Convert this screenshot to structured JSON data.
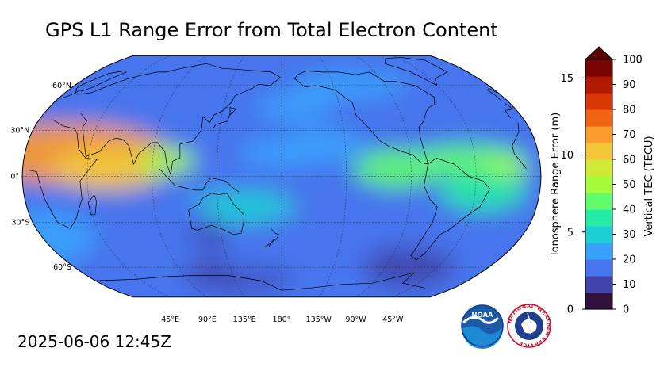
{
  "title": "GPS L1 Range Error from Total Electron Content",
  "timestamp": "2025-06-06 12:45Z",
  "map": {
    "projection": "Robinson",
    "central_longitude": "180°",
    "lat_labels": [
      "60°N",
      "30°N",
      "0°",
      "30°S",
      "60°S"
    ],
    "lon_labels": [
      "45°E",
      "90°E",
      "135°E",
      "180°",
      "135°W",
      "90°W",
      "45°W"
    ],
    "gridlines": true
  },
  "colorbar": {
    "right_label": "Vertical TEC (TECU)",
    "left_label": "Ionosphere Range Error (m)",
    "right_ticks": [
      "0",
      "10",
      "20",
      "30",
      "40",
      "50",
      "60",
      "70",
      "80",
      "90",
      "100"
    ],
    "left_ticks": [
      "0",
      "5",
      "10",
      "15"
    ],
    "extend": "max",
    "colors": [
      "#30123b",
      "#4145ab",
      "#4675ed",
      "#39a2fc",
      "#1bcfd4",
      "#24eca6",
      "#61fc6c",
      "#a4fc3b",
      "#d1e834",
      "#f3c63a",
      "#fe9b2d",
      "#f36315",
      "#d93806",
      "#b11901",
      "#7a0402"
    ]
  },
  "logos": {
    "noaa": "NOAA",
    "nws": "NATIONAL WEATHER SERVICE"
  }
}
